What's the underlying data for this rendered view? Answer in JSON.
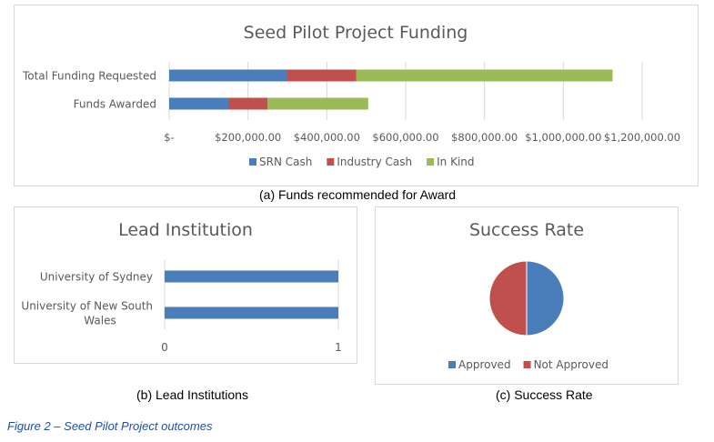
{
  "chart_data": [
    {
      "type": "bar",
      "orientation": "horizontal",
      "stacked": true,
      "title": "Seed Pilot Project Funding",
      "categories": [
        "Total Funding Requested",
        "Funds Awarded"
      ],
      "series": [
        {
          "name": "SRN Cash",
          "values": [
            300000,
            150000
          ],
          "color": "#4a7ebb"
        },
        {
          "name": "Industry Cash",
          "values": [
            175000,
            100000
          ],
          "color": "#c0504d"
        },
        {
          "name": "In Kind",
          "values": [
            650000,
            255000
          ],
          "color": "#9bbb59"
        }
      ],
      "xlim": [
        0,
        1200000
      ],
      "xticks": [
        "$-",
        "$200,000.00",
        "$400,000.00",
        "$600,000.00",
        "$800,000.00",
        "$1,000,000.00",
        "$1,200,000.00"
      ],
      "grid": true,
      "legend": "bottom"
    },
    {
      "type": "bar",
      "orientation": "horizontal",
      "title": "Lead Institution",
      "categories": [
        "University of Sydney",
        "University of New South Wales"
      ],
      "category_lines": [
        [
          "University of Sydney"
        ],
        [
          "University of New South",
          "Wales"
        ]
      ],
      "values": [
        1,
        1
      ],
      "color": "#4a7ebb",
      "xlim": [
        0,
        1
      ],
      "xticks": [
        "0",
        "1"
      ],
      "grid": true
    },
    {
      "type": "pie",
      "title": "Success Rate",
      "labels": [
        "Approved",
        "Not Approved"
      ],
      "values": [
        50,
        50
      ],
      "colors": [
        "#4a7ebb",
        "#c0504d"
      ],
      "legend": "bottom"
    }
  ],
  "captions": {
    "a": "(a)  Funds recommended for Award",
    "b": "(b)  Lead Institutions",
    "c": "(c)  Success Rate"
  },
  "figure_caption": "Figure 2 – Seed Pilot Project outcomes"
}
